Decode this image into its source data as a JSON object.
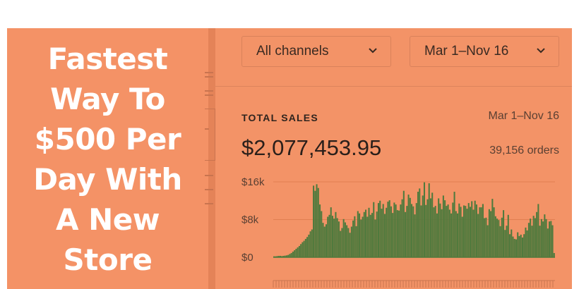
{
  "promo": {
    "title_lines": [
      "Fastest",
      "Way To",
      "$500 Per",
      "Day With",
      "A New",
      "Store"
    ]
  },
  "toolbar": {
    "channel_filter": "All channels",
    "date_filter": "Mar 1–Nov 16"
  },
  "sales": {
    "label": "TOTAL SALES",
    "range": "Mar 1–Nov 16",
    "total": "$2,077,453.95",
    "orders": "39,156 orders"
  },
  "colors": {
    "background": "#f49266",
    "bar": "#4f7a3d",
    "text": "#2a1f1a"
  },
  "chart_data": {
    "type": "bar",
    "title": "",
    "xlabel": "",
    "ylabel": "",
    "ylim": [
      0,
      16000
    ],
    "y_ticks": [
      "$16k",
      "$8k",
      "$0"
    ],
    "grid": true,
    "series": [
      {
        "values": [
          200,
          200,
          250,
          300,
          300,
          250,
          300,
          350,
          400,
          500,
          700,
          900,
          1200,
          1500,
          1800,
          2100,
          2400,
          2800,
          3200,
          3500,
          3900,
          4300,
          4800,
          5500,
          5900,
          15200,
          14100,
          15500,
          14700,
          11200,
          9800,
          7300,
          6500,
          7000,
          8600,
          9000,
          10600,
          8800,
          8200,
          9600,
          8300,
          7600,
          5600,
          6200,
          8100,
          7400,
          6800,
          6200,
          5200,
          6500,
          7800,
          8700,
          6600,
          9800,
          9300,
          8000,
          8600,
          9600,
          10100,
          8600,
          10500,
          9000,
          9400,
          11700,
          8000,
          9700,
          11500,
          12000,
          10300,
          11300,
          9200,
          10500,
          11800,
          12100,
          10800,
          9400,
          11600,
          11200,
          10000,
          9900,
          11200,
          12300,
          14100,
          9600,
          10900,
          13300,
          12600,
          11300,
          10800,
          9100,
          11500,
          13900,
          14600,
          11000,
          13100,
          15900,
          11100,
          12300,
          15700,
          12500,
          13700,
          10600,
          10900,
          9300,
          12500,
          11400,
          10200,
          13100,
          12100,
          10900,
          11200,
          10100,
          9300,
          11600,
          13900,
          9800,
          9300,
          11400,
          10700,
          8600,
          11000,
          10900,
          10300,
          11500,
          10700,
          11900,
          10100,
          12000,
          11200,
          9200,
          10600,
          10600,
          11300,
          8300,
          8400,
          6800,
          10200,
          9800,
          12400,
          10600,
          8700,
          8200,
          7900,
          6600,
          8400,
          10000,
          5800,
          6700,
          9000,
          4900,
          5900,
          4400,
          3900,
          3800,
          5300,
          4500,
          4800,
          4200,
          4900,
          6300,
          5700,
          7300,
          8200,
          6700,
          8800,
          8300,
          9600,
          11300,
          6700,
          8100,
          7600,
          9100,
          8100,
          6100,
          7600,
          7700,
          6800,
          900
        ]
      }
    ]
  }
}
